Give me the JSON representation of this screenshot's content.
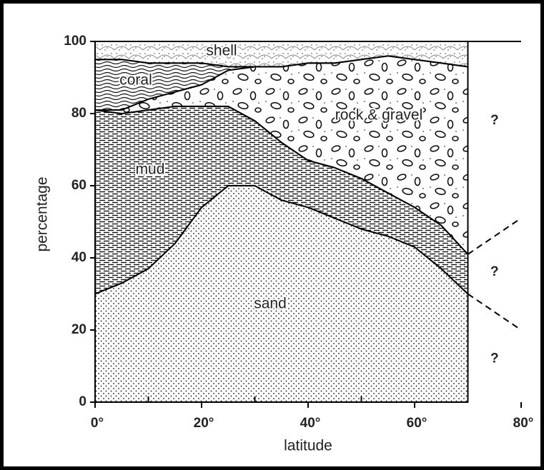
{
  "chart_data": {
    "type": "stacked_area",
    "x_label": "latitude",
    "y_label": "percentage",
    "x": [
      0,
      5,
      10,
      15,
      20,
      25,
      30,
      35,
      40,
      45,
      50,
      55,
      60,
      65,
      70
    ],
    "series": [
      {
        "name": "sand",
        "color": "#000000",
        "values": [
          30,
          33,
          37,
          44,
          54,
          60,
          60,
          56,
          54,
          51,
          48,
          46,
          43,
          37,
          30
        ]
      },
      {
        "name": "mud",
        "color": "#000000",
        "values": [
          51,
          47,
          44,
          38,
          28,
          22,
          18,
          16,
          13,
          14,
          14,
          12,
          11,
          12,
          11
        ]
      },
      {
        "name": "rock & gravel",
        "color": "#000000",
        "values": [
          0,
          1,
          3,
          4,
          6,
          10,
          15,
          21,
          27,
          29,
          33,
          38,
          41,
          45,
          52
        ]
      },
      {
        "name": "coral",
        "color": "#000000",
        "values": [
          14,
          14,
          10,
          8,
          6,
          1,
          0,
          0,
          0,
          0,
          0,
          0,
          0,
          0,
          0
        ]
      },
      {
        "name": "shell",
        "color": "#000000",
        "values": [
          5,
          5,
          6,
          6,
          6,
          7,
          7,
          7,
          6,
          6,
          5,
          4,
          5,
          6,
          7
        ]
      }
    ],
    "extrapolations": [
      {
        "x": [
          70,
          80
        ],
        "y": [
          41,
          51
        ]
      },
      {
        "x": [
          70,
          80
        ],
        "y": [
          30,
          20
        ]
      }
    ],
    "annotations": [
      {
        "text": "?",
        "x": 75,
        "y": 78
      },
      {
        "text": "?",
        "x": 75,
        "y": 36
      },
      {
        "text": "?",
        "x": 75,
        "y": 12
      }
    ],
    "xlim": [
      0,
      80
    ],
    "xticks": [
      {
        "value": 0,
        "label": "0°"
      },
      {
        "value": 20,
        "label": "20°"
      },
      {
        "value": 40,
        "label": "40°"
      },
      {
        "value": 60,
        "label": "60°"
      },
      {
        "value": 80,
        "label": "80°"
      }
    ],
    "xminorticks": [
      10,
      30,
      50,
      70
    ],
    "ylim": [
      0,
      100
    ],
    "yticks": [
      0,
      20,
      40,
      60,
      80,
      100
    ]
  }
}
